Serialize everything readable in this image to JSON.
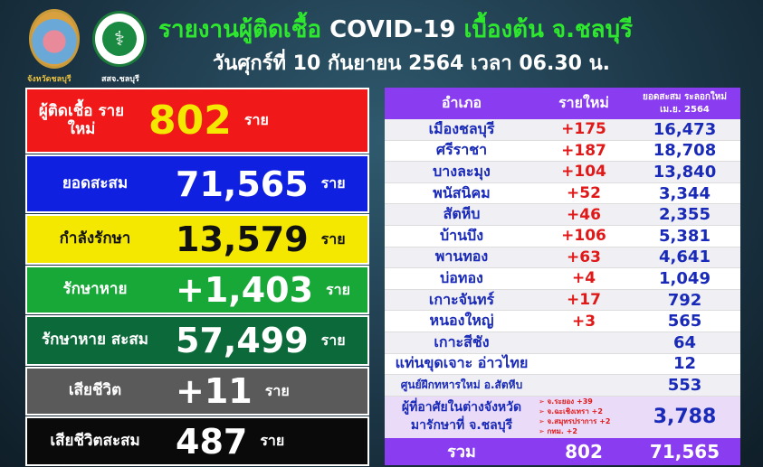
{
  "header": {
    "logo_left_caption": "จังหวัดชลบุรี",
    "logo_right_caption": "สสจ.ชลบุรี",
    "title_part1": "รายงานผู้ติดเชื้อ",
    "title_part2": "COVID-19",
    "title_part3": "เบื้องต้น จ.ชลบุรี",
    "subtitle": "วันศุกร์ที่ 10 กันยายน 2564 เวลา 06.30 น."
  },
  "stats": [
    {
      "label": "ผู้ติดเชื้อ รายใหม่",
      "value": "802",
      "unit": "ราย",
      "color": "#f01818"
    },
    {
      "label": "ยอดสะสม",
      "value": "71,565",
      "unit": "ราย",
      "color": "#1020e0"
    },
    {
      "label": "กำลังรักษา",
      "value": "13,579",
      "unit": "ราย",
      "color": "#f5e800"
    },
    {
      "label": "รักษาหาย",
      "value": "+1,403",
      "unit": "ราย",
      "color": "#18a838"
    },
    {
      "label": "รักษาหาย สะสม",
      "value": "57,499",
      "unit": "ราย",
      "color": "#0c6a3a"
    },
    {
      "label": "เสียชีวิต",
      "value": "+11",
      "unit": "ราย",
      "color": "#5a5a5a"
    },
    {
      "label": "เสียชีวิตสะสม",
      "value": "487",
      "unit": "ราย",
      "color": "#0a0a0a"
    }
  ],
  "table": {
    "headers": [
      "อำเภอ",
      "รายใหม่",
      "ยอดสะสม ระลอกใหม่",
      "เม.ย. 2564"
    ],
    "rows": [
      [
        "เมืองชลบุรี",
        "+175",
        "16,473"
      ],
      [
        "ศรีราชา",
        "+187",
        "18,708"
      ],
      [
        "บางละมุง",
        "+104",
        "13,840"
      ],
      [
        "พนัสนิคม",
        "+52",
        "3,344"
      ],
      [
        "สัตหีบ",
        "+46",
        "2,355"
      ],
      [
        "บ้านบึง",
        "+106",
        "5,381"
      ],
      [
        "พานทอง",
        "+63",
        "4,641"
      ],
      [
        "บ่อทอง",
        "+4",
        "1,049"
      ],
      [
        "เกาะจันทร์",
        "+17",
        "792"
      ],
      [
        "หนองใหญ่",
        "+3",
        "565"
      ],
      [
        "เกาะสีชัง",
        "",
        "64"
      ],
      [
        "แท่นขุดเจาะ อ่าวไทย",
        "",
        "12"
      ],
      [
        "ศูนย์ฝึกทหารใหม่ อ.สัตหีบ",
        "",
        "553"
      ]
    ],
    "other": {
      "label1": "ผู้ที่อาศัยในต่างจังหวัด",
      "label2": "มารักษาที่ จ.ชลบุรี",
      "notes": [
        "➢ จ.ระยอง +39",
        "➢ จ.ฉะเชิงเทรา +2",
        "➢ จ.สมุทรปราการ +2",
        "➢ กทม. +2"
      ],
      "total": "3,788"
    },
    "total": {
      "label": "รวม",
      "new": "802",
      "cumulative": "71,565"
    }
  }
}
